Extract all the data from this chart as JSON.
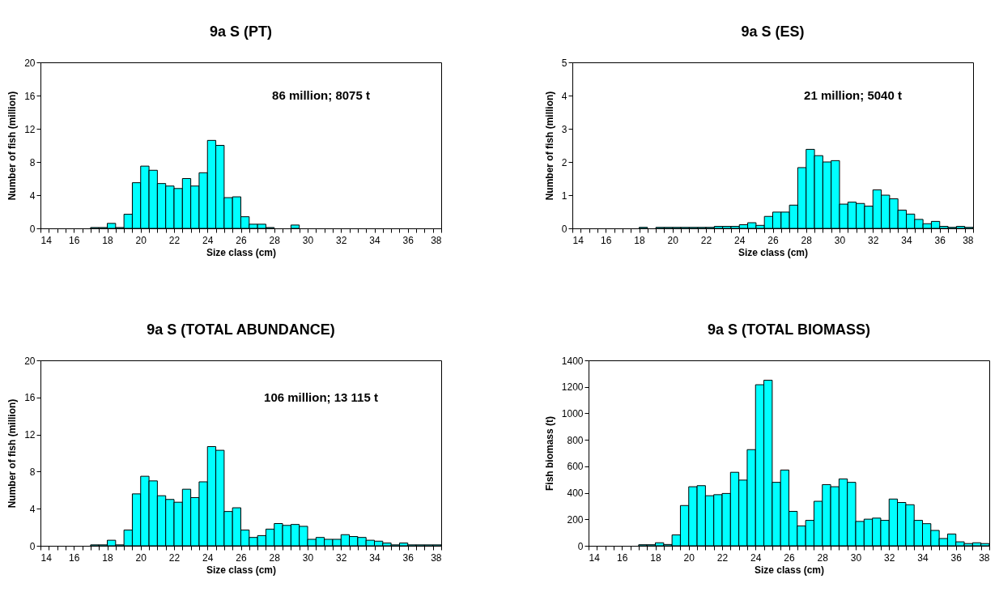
{
  "chart_data": [
    {
      "type": "histogram",
      "title": "9a S (PT)",
      "xlabel": "Size class  (cm)",
      "ylabel": "Number of fish (million)",
      "color": "#00ffff",
      "annotations": [
        "86 million; 8075  t"
      ],
      "bins": [
        14,
        14.5,
        15,
        15.5,
        16,
        16.5,
        17,
        17.5,
        18,
        18.5,
        19,
        19.5,
        20,
        20.5,
        21,
        21.5,
        22,
        22.5,
        23,
        23.5,
        24,
        24.5,
        25,
        25.5,
        26,
        26.5,
        27,
        27.5,
        28,
        28.5,
        29,
        29.5,
        30,
        30.5,
        31,
        31.5,
        32,
        32.5,
        33,
        33.5,
        34,
        34.5,
        35,
        35.5,
        36,
        36.5,
        37,
        37.5,
        38
      ],
      "values": [
        0,
        0,
        0,
        0,
        0,
        0,
        0.1,
        0.1,
        0.6,
        0.1,
        1.7,
        5.5,
        7.5,
        7.0,
        5.4,
        5.1,
        4.8,
        6.0,
        5.1,
        6.7,
        10.6,
        10.0,
        3.7,
        3.8,
        1.4,
        0.5,
        0.5,
        0.1,
        0,
        0,
        0.4,
        0,
        0,
        0,
        0,
        0,
        0,
        0,
        0,
        0,
        0,
        0,
        0,
        0,
        0,
        0,
        0,
        0
      ],
      "xlim": [
        14,
        38
      ],
      "xticks": [
        14,
        {
          "value": 14.5,
          "label": null
        },
        {
          "value": 15,
          "label": null
        },
        {
          "value": 15.5,
          "label": null
        },
        16,
        {
          "value": 16.5,
          "label": null
        },
        {
          "value": 17,
          "label": null
        },
        {
          "value": 17.5,
          "label": null
        },
        18,
        {
          "value": 18.5,
          "label": null
        },
        {
          "value": 19,
          "label": null
        },
        {
          "value": 19.5,
          "label": null
        },
        20,
        {
          "value": 20.5,
          "label": null
        },
        {
          "value": 21,
          "label": null
        },
        {
          "value": 21.5,
          "label": null
        },
        22,
        {
          "value": 22.5,
          "label": null
        },
        {
          "value": 23,
          "label": null
        },
        {
          "value": 23.5,
          "label": null
        },
        24,
        {
          "value": 24.5,
          "label": null
        },
        {
          "value": 25,
          "label": null
        },
        {
          "value": 25.5,
          "label": null
        },
        26,
        {
          "value": 26.5,
          "label": null
        },
        {
          "value": 27,
          "label": null
        },
        {
          "value": 27.5,
          "label": null
        },
        28,
        {
          "value": 28.5,
          "label": null
        },
        {
          "value": 29,
          "label": null
        },
        {
          "value": 29.5,
          "label": null
        },
        30,
        {
          "value": 30.5,
          "label": null
        },
        {
          "value": 31,
          "label": null
        },
        {
          "value": 31.5,
          "label": null
        },
        32,
        {
          "value": 32.5,
          "label": null
        },
        {
          "value": 33,
          "label": null
        },
        {
          "value": 33.5,
          "label": null
        },
        34,
        {
          "value": 34.5,
          "label": null
        },
        {
          "value": 35,
          "label": null
        },
        {
          "value": 35.5,
          "label": null
        },
        36,
        {
          "value": 36.5,
          "label": null
        },
        {
          "value": 37,
          "label": null
        },
        {
          "value": 37.5,
          "label": null
        },
        38
      ],
      "ylim": [
        0,
        20
      ],
      "yticks": [
        0,
        4,
        8,
        12,
        16,
        20
      ]
    },
    {
      "type": "histogram",
      "title": "9a S (ES)",
      "xlabel": "Size class  (cm)",
      "ylabel": "Number of fish (million)",
      "color": "#00ffff",
      "annotations": [
        "21 million; 5040  t"
      ],
      "bins": [
        14,
        14.5,
        15,
        15.5,
        16,
        16.5,
        17,
        17.5,
        18,
        18.5,
        19,
        19.5,
        20,
        20.5,
        21,
        21.5,
        22,
        22.5,
        23,
        23.5,
        24,
        24.5,
        25,
        25.5,
        26,
        26.5,
        27,
        27.5,
        28,
        28.5,
        29,
        29.5,
        30,
        30.5,
        31,
        31.5,
        32,
        32.5,
        33,
        33.5,
        34,
        34.5,
        35,
        35.5,
        36,
        36.5,
        37,
        37.5,
        38
      ],
      "values": [
        0,
        0,
        0,
        0,
        0,
        0,
        0,
        0,
        0.03,
        0,
        0.03,
        0.03,
        0.03,
        0.03,
        0.03,
        0.03,
        0.03,
        0.06,
        0.06,
        0.06,
        0.11,
        0.17,
        0.09,
        0.36,
        0.49,
        0.49,
        0.7,
        1.83,
        2.38,
        2.19,
        2.0,
        2.04,
        0.73,
        0.79,
        0.75,
        0.67,
        1.16,
        1.0,
        0.89,
        0.55,
        0.43,
        0.27,
        0.14,
        0.21,
        0.06,
        0.03,
        0.06,
        0.03
      ],
      "xlim": [
        14,
        38
      ],
      "xticks": [
        14,
        {
          "value": 14.5,
          "label": null
        },
        {
          "value": 15,
          "label": null
        },
        {
          "value": 15.5,
          "label": null
        },
        16,
        {
          "value": 16.5,
          "label": null
        },
        {
          "value": 17,
          "label": null
        },
        {
          "value": 17.5,
          "label": null
        },
        18,
        {
          "value": 18.5,
          "label": null
        },
        {
          "value": 19,
          "label": null
        },
        {
          "value": 19.5,
          "label": null
        },
        20,
        {
          "value": 20.5,
          "label": null
        },
        {
          "value": 21,
          "label": null
        },
        {
          "value": 21.5,
          "label": null
        },
        22,
        {
          "value": 22.5,
          "label": null
        },
        {
          "value": 23,
          "label": null
        },
        {
          "value": 23.5,
          "label": null
        },
        24,
        {
          "value": 24.5,
          "label": null
        },
        {
          "value": 25,
          "label": null
        },
        {
          "value": 25.5,
          "label": null
        },
        26,
        {
          "value": 26.5,
          "label": null
        },
        {
          "value": 27,
          "label": null
        },
        {
          "value": 27.5,
          "label": null
        },
        28,
        {
          "value": 28.5,
          "label": null
        },
        {
          "value": 29,
          "label": null
        },
        {
          "value": 29.5,
          "label": null
        },
        30,
        {
          "value": 30.5,
          "label": null
        },
        {
          "value": 31,
          "label": null
        },
        {
          "value": 31.5,
          "label": null
        },
        32,
        {
          "value": 32.5,
          "label": null
        },
        {
          "value": 33,
          "label": null
        },
        {
          "value": 33.5,
          "label": null
        },
        34,
        {
          "value": 34.5,
          "label": null
        },
        {
          "value": 35,
          "label": null
        },
        {
          "value": 35.5,
          "label": null
        },
        36,
        {
          "value": 36.5,
          "label": null
        },
        {
          "value": 37,
          "label": null
        },
        {
          "value": 37.5,
          "label": null
        },
        38
      ],
      "ylim": [
        0,
        5
      ],
      "yticks": [
        0,
        1,
        2,
        3,
        4,
        5
      ]
    },
    {
      "type": "histogram",
      "title": "9a S (TOTAL ABUNDANCE)",
      "xlabel": "Size class  (cm)",
      "ylabel": "Number of fish (million)",
      "color": "#00ffff",
      "annotations": [
        "106 million; 13 115  t"
      ],
      "bins": [
        14,
        14.5,
        15,
        15.5,
        16,
        16.5,
        17,
        17.5,
        18,
        18.5,
        19,
        19.5,
        20,
        20.5,
        21,
        21.5,
        22,
        22.5,
        23,
        23.5,
        24,
        24.5,
        25,
        25.5,
        26,
        26.5,
        27,
        27.5,
        28,
        28.5,
        29,
        29.5,
        30,
        30.5,
        31,
        31.5,
        32,
        32.5,
        33,
        33.5,
        34,
        34.5,
        35,
        35.5,
        36,
        36.5,
        37,
        37.5,
        38
      ],
      "values": [
        0,
        0,
        0,
        0,
        0,
        0,
        0.1,
        0.1,
        0.6,
        0.1,
        1.7,
        5.6,
        7.5,
        7.0,
        5.4,
        5.0,
        4.7,
        6.1,
        5.2,
        6.9,
        10.7,
        10.3,
        3.7,
        4.1,
        1.7,
        0.9,
        1.1,
        1.8,
        2.4,
        2.2,
        2.3,
        2.1,
        0.7,
        0.9,
        0.7,
        0.7,
        1.2,
        1.0,
        0.9,
        0.6,
        0.5,
        0.3,
        0.1,
        0.3,
        0.1,
        0.1,
        0.1,
        0.1
      ],
      "xlim": [
        14,
        38
      ],
      "xticks": [
        14,
        {
          "value": 14.5,
          "label": null
        },
        {
          "value": 15,
          "label": null
        },
        {
          "value": 15.5,
          "label": null
        },
        16,
        {
          "value": 16.5,
          "label": null
        },
        {
          "value": 17,
          "label": null
        },
        {
          "value": 17.5,
          "label": null
        },
        18,
        {
          "value": 18.5,
          "label": null
        },
        {
          "value": 19,
          "label": null
        },
        {
          "value": 19.5,
          "label": null
        },
        20,
        {
          "value": 20.5,
          "label": null
        },
        {
          "value": 21,
          "label": null
        },
        {
          "value": 21.5,
          "label": null
        },
        22,
        {
          "value": 22.5,
          "label": null
        },
        {
          "value": 23,
          "label": null
        },
        {
          "value": 23.5,
          "label": null
        },
        24,
        {
          "value": 24.5,
          "label": null
        },
        {
          "value": 25,
          "label": null
        },
        {
          "value": 25.5,
          "label": null
        },
        26,
        {
          "value": 26.5,
          "label": null
        },
        {
          "value": 27,
          "label": null
        },
        {
          "value": 27.5,
          "label": null
        },
        28,
        {
          "value": 28.5,
          "label": null
        },
        {
          "value": 29,
          "label": null
        },
        {
          "value": 29.5,
          "label": null
        },
        30,
        {
          "value": 30.5,
          "label": null
        },
        {
          "value": 31,
          "label": null
        },
        {
          "value": 31.5,
          "label": null
        },
        32,
        {
          "value": 32.5,
          "label": null
        },
        {
          "value": 33,
          "label": null
        },
        {
          "value": 33.5,
          "label": null
        },
        34,
        {
          "value": 34.5,
          "label": null
        },
        {
          "value": 35,
          "label": null
        },
        {
          "value": 35.5,
          "label": null
        },
        36,
        {
          "value": 36.5,
          "label": null
        },
        {
          "value": 37,
          "label": null
        },
        {
          "value": 37.5,
          "label": null
        },
        38
      ],
      "ylim": [
        0,
        20
      ],
      "yticks": [
        0,
        4,
        8,
        12,
        16,
        20
      ]
    },
    {
      "type": "histogram",
      "title": "9a S (TOTAL BIOMASS)",
      "xlabel": "Size class  (cm)",
      "ylabel": "Fish biomass  (t)",
      "color": "#00ffff",
      "bins": [
        14,
        14.5,
        15,
        15.5,
        16,
        16.5,
        17,
        17.5,
        18,
        18.5,
        19,
        19.5,
        20,
        20.5,
        21,
        21.5,
        22,
        22.5,
        23,
        23.5,
        24,
        24.5,
        25,
        25.5,
        26,
        26.5,
        27,
        27.5,
        28,
        28.5,
        29,
        29.5,
        30,
        30.5,
        31,
        31.5,
        32,
        32.5,
        33,
        33.5,
        34,
        34.5,
        35,
        35.5,
        36,
        36.5,
        37,
        37.5,
        38
      ],
      "values": [
        0,
        0,
        0,
        0,
        0,
        0,
        8,
        8,
        23,
        10,
        82,
        304,
        446,
        454,
        378,
        386,
        395,
        555,
        496,
        726,
        1216,
        1250,
        479,
        572,
        260,
        150,
        192,
        336,
        462,
        446,
        505,
        479,
        184,
        201,
        209,
        192,
        353,
        327,
        310,
        192,
        167,
        116,
        55,
        89,
        30,
        17,
        23,
        17
      ],
      "xlim": [
        14,
        38
      ],
      "xticks": [
        14,
        {
          "value": 14.5,
          "label": null
        },
        {
          "value": 15,
          "label": null
        },
        {
          "value": 15.5,
          "label": null
        },
        16,
        {
          "value": 16.5,
          "label": null
        },
        {
          "value": 17,
          "label": null
        },
        {
          "value": 17.5,
          "label": null
        },
        18,
        {
          "value": 18.5,
          "label": null
        },
        {
          "value": 19,
          "label": null
        },
        {
          "value": 19.5,
          "label": null
        },
        20,
        {
          "value": 20.5,
          "label": null
        },
        {
          "value": 21,
          "label": null
        },
        {
          "value": 21.5,
          "label": null
        },
        22,
        {
          "value": 22.5,
          "label": null
        },
        {
          "value": 23,
          "label": null
        },
        {
          "value": 23.5,
          "label": null
        },
        24,
        {
          "value": 24.5,
          "label": null
        },
        {
          "value": 25,
          "label": null
        },
        {
          "value": 25.5,
          "label": null
        },
        26,
        {
          "value": 26.5,
          "label": null
        },
        {
          "value": 27,
          "label": null
        },
        {
          "value": 27.5,
          "label": null
        },
        28,
        {
          "value": 28.5,
          "label": null
        },
        {
          "value": 29,
          "label": null
        },
        {
          "value": 29.5,
          "label": null
        },
        30,
        {
          "value": 30.5,
          "label": null
        },
        {
          "value": 31,
          "label": null
        },
        {
          "value": 31.5,
          "label": null
        },
        32,
        {
          "value": 32.5,
          "label": null
        },
        {
          "value": 33,
          "label": null
        },
        {
          "value": 33.5,
          "label": null
        },
        34,
        {
          "value": 34.5,
          "label": null
        },
        {
          "value": 35,
          "label": null
        },
        {
          "value": 35.5,
          "label": null
        },
        36,
        {
          "value": 36.5,
          "label": null
        },
        {
          "value": 37,
          "label": null
        },
        {
          "value": 37.5,
          "label": null
        },
        38
      ],
      "ylim": [
        0,
        1400
      ],
      "yticks": [
        0,
        200,
        400,
        600,
        800,
        1000,
        1200,
        1400
      ]
    }
  ]
}
